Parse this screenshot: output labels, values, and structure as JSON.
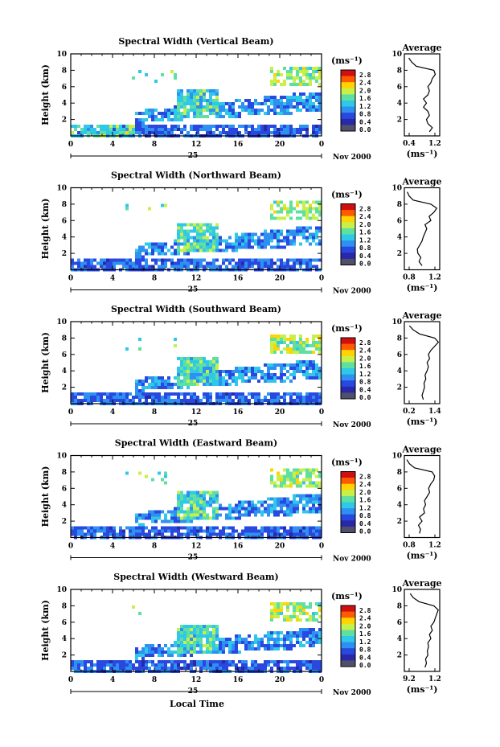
{
  "figure": {
    "x_axis_label": "Local Time",
    "date_label": "Nov 2000",
    "day_label": "25",
    "y_axis_label": "Height (km)",
    "unit_label": "(ms⁻¹)",
    "profile_title": "Average",
    "profile_xlabel": "(ms⁻¹)"
  },
  "colorbar": {
    "ticks": [
      "2.8",
      "2.4",
      "2.0",
      "1.6",
      "1.2",
      "0.8",
      "0.4",
      "0.0"
    ],
    "colors": [
      "#d01010",
      "#ff5a00",
      "#ffd400",
      "#c8f04a",
      "#5fe0a0",
      "#2fc8e8",
      "#2e90f0",
      "#2848e0",
      "#2828a8",
      "#50506a"
    ]
  },
  "chart_data": [
    {
      "type": "heatmap",
      "title": "Spectral Width (Vertical Beam)",
      "xlabel": "",
      "ylabel": "Height (km)",
      "x_ticks": [
        "0",
        "4",
        "8",
        "12",
        "16",
        "20",
        "0"
      ],
      "y_ticks": [
        "2",
        "4",
        "6",
        "8",
        "10"
      ],
      "xlim": [
        0,
        24
      ],
      "ylim": [
        0,
        10
      ],
      "zlim": [
        0,
        3.0
      ],
      "profile": {
        "type": "line",
        "title": "Average",
        "x_ticks": [
          "0.4",
          "1.2"
        ],
        "xlim": [
          0.2,
          1.4
        ],
        "heights": [
          0.5,
          1.0,
          1.5,
          2.0,
          2.5,
          3.0,
          3.5,
          4.0,
          4.5,
          5.0,
          5.5,
          6.0,
          6.5,
          7.0,
          7.5,
          8.0,
          8.5,
          9.0,
          9.5
        ],
        "values": [
          1.05,
          1.15,
          1.0,
          0.95,
          1.05,
          1.0,
          0.85,
          0.95,
          0.85,
          1.0,
          1.05,
          1.0,
          1.1,
          1.15,
          1.25,
          1.2,
          0.6,
          0.45,
          0.35
        ]
      }
    },
    {
      "type": "heatmap",
      "title": "Spectral Width (Northward Beam)",
      "xlabel": "",
      "ylabel": "Height (km)",
      "x_ticks": [
        "0",
        "4",
        "8",
        "12",
        "16",
        "20",
        "0"
      ],
      "y_ticks": [
        "2",
        "4",
        "6",
        "8",
        "10"
      ],
      "xlim": [
        0,
        24
      ],
      "ylim": [
        0,
        10
      ],
      "zlim": [
        0,
        3.0
      ],
      "profile": {
        "type": "line",
        "title": "Average",
        "x_ticks": [
          "0.8",
          "1.2"
        ],
        "xlim": [
          0.7,
          1.3
        ],
        "heights": [
          0.5,
          1.0,
          1.5,
          2.0,
          2.5,
          3.0,
          3.5,
          4.0,
          4.5,
          5.0,
          5.5,
          6.0,
          6.5,
          7.0,
          7.5,
          8.0,
          8.5,
          9.0,
          9.5
        ],
        "values": [
          1.0,
          0.95,
          0.98,
          0.93,
          0.92,
          0.96,
          1.0,
          1.02,
          1.05,
          1.08,
          1.05,
          1.15,
          1.12,
          1.2,
          1.25,
          1.15,
          0.85,
          0.78,
          0.75
        ]
      }
    },
    {
      "type": "heatmap",
      "title": "Spectral Width (Southward Beam)",
      "xlabel": "",
      "ylabel": "Height (km)",
      "x_ticks": [
        "0",
        "4",
        "8",
        "12",
        "16",
        "20",
        "0"
      ],
      "y_ticks": [
        "2",
        "4",
        "6",
        "8",
        "10"
      ],
      "xlim": [
        0,
        24
      ],
      "ylim": [
        0,
        10
      ],
      "zlim": [
        0,
        3.0
      ],
      "profile": {
        "type": "line",
        "title": "Average",
        "x_ticks": [
          "0.2",
          "1.4"
        ],
        "xlim": [
          0.1,
          1.5
        ],
        "heights": [
          0.5,
          1.0,
          1.5,
          2.0,
          2.5,
          3.0,
          3.5,
          4.0,
          4.5,
          5.0,
          5.5,
          6.0,
          6.5,
          7.0,
          7.5,
          8.0,
          8.5,
          9.0,
          9.5
        ],
        "values": [
          0.85,
          0.8,
          0.85,
          0.9,
          0.88,
          0.95,
          0.92,
          1.0,
          1.05,
          1.0,
          1.1,
          1.05,
          1.15,
          1.3,
          1.45,
          1.3,
          0.7,
          0.45,
          0.3
        ]
      }
    },
    {
      "type": "heatmap",
      "title": "Spectral Width (Eastward Beam)",
      "xlabel": "",
      "ylabel": "Height (km)",
      "x_ticks": [
        "0",
        "4",
        "8",
        "12",
        "16",
        "20",
        "0"
      ],
      "y_ticks": [
        "2",
        "4",
        "6",
        "8",
        "10"
      ],
      "xlim": [
        0,
        24
      ],
      "ylim": [
        0,
        10
      ],
      "zlim": [
        0,
        3.0
      ],
      "profile": {
        "type": "line",
        "title": "Average",
        "x_ticks": [
          "0.8",
          "1.2"
        ],
        "xlim": [
          0.6,
          1.3
        ],
        "heights": [
          0.5,
          1.0,
          1.5,
          2.0,
          2.5,
          3.0,
          3.5,
          4.0,
          4.5,
          5.0,
          5.5,
          6.0,
          6.5,
          7.0,
          7.5,
          8.0,
          8.5,
          9.0,
          9.5
        ],
        "values": [
          0.9,
          0.92,
          0.88,
          0.95,
          0.9,
          1.0,
          0.98,
          1.02,
          1.0,
          1.05,
          1.1,
          1.08,
          1.12,
          1.18,
          1.2,
          1.15,
          0.8,
          0.7,
          0.65
        ]
      }
    },
    {
      "type": "heatmap",
      "title": "Spectral Width (Westward Beam)",
      "xlabel": "Local Time",
      "ylabel": "Height (km)",
      "x_ticks": [
        "0",
        "4",
        "8",
        "12",
        "16",
        "20",
        "0"
      ],
      "y_ticks": [
        "2",
        "4",
        "6",
        "8",
        "10"
      ],
      "xlim": [
        0,
        24
      ],
      "ylim": [
        0,
        10
      ],
      "zlim": [
        0,
        3.0
      ],
      "profile": {
        "type": "line",
        "title": "Average",
        "x_ticks": [
          "9.2",
          "1.2"
        ],
        "xlim": [
          0.1,
          1.3
        ],
        "heights": [
          0.5,
          1.0,
          1.5,
          2.0,
          2.5,
          3.0,
          3.5,
          4.0,
          4.5,
          5.0,
          5.5,
          6.0,
          6.5,
          7.0,
          7.5,
          8.0,
          8.5,
          9.0,
          9.5
        ],
        "values": [
          0.8,
          0.85,
          0.82,
          0.9,
          0.88,
          0.92,
          0.9,
          1.0,
          0.95,
          1.05,
          1.0,
          1.1,
          1.15,
          1.2,
          1.25,
          1.1,
          0.6,
          0.4,
          0.3
        ]
      }
    }
  ]
}
